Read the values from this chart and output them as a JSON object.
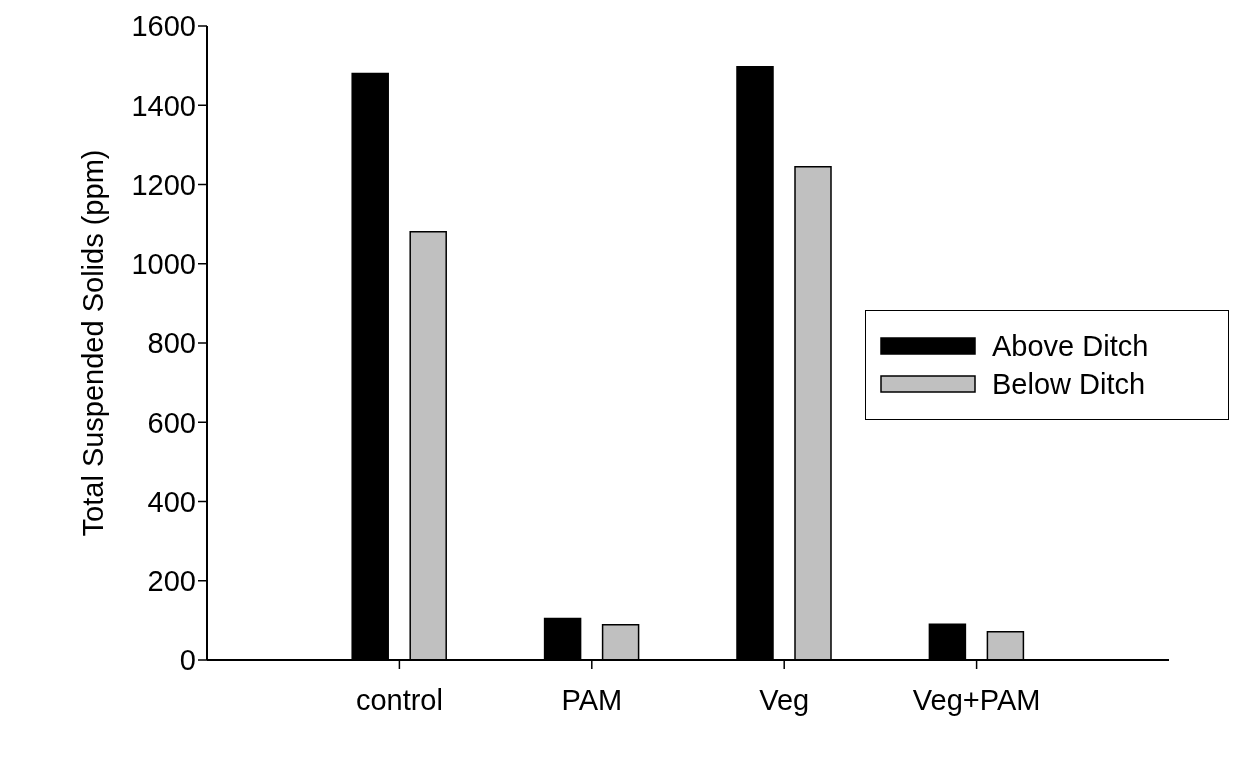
{
  "chart_data": {
    "type": "bar",
    "ylabel": "Total Suspended Solids (ppm)",
    "categories": [
      "control",
      "PAM",
      "Veg",
      "Veg+PAM"
    ],
    "series": [
      {
        "name": "Above Ditch",
        "color": "#000000",
        "values": [
          1480,
          105,
          1497,
          90
        ]
      },
      {
        "name": "Below Ditch",
        "color": "#c0c0c0",
        "values": [
          1081,
          89,
          1245,
          71
        ]
      }
    ],
    "ylim": [
      0,
      1600
    ],
    "yticks": [
      0,
      200,
      400,
      600,
      800,
      1000,
      1200,
      1400,
      1600
    ],
    "grid": false,
    "legend": "right"
  }
}
